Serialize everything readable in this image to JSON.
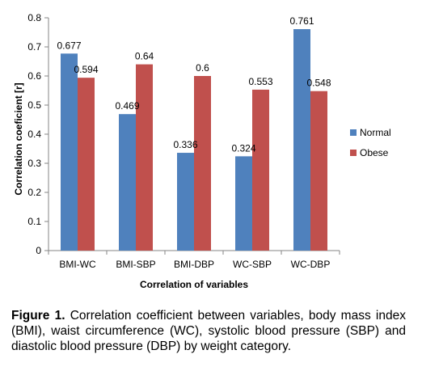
{
  "chart_data": {
    "type": "bar",
    "categories": [
      "BMI-WC",
      "BMI-SBP",
      "BMI-DBP",
      "WC-SBP",
      "WC-DBP"
    ],
    "series": [
      {
        "name": "Normal",
        "color": "#4F81BD",
        "values": [
          0.677,
          0.469,
          0.336,
          0.324,
          0.761
        ],
        "labels": [
          "0.677",
          "0.469",
          "0.336",
          "0.324",
          "0.761"
        ]
      },
      {
        "name": "Obese",
        "color": "#C0504D",
        "values": [
          0.594,
          0.64,
          0.6,
          0.553,
          0.548
        ],
        "labels": [
          "0.594",
          "0.64",
          "0.6",
          "0.553",
          "0.548"
        ]
      }
    ],
    "xlabel": "Correlation of variables",
    "ylabel": "Correlation coeficient [r]",
    "ylim": [
      0,
      0.8
    ],
    "yticks": [
      "0",
      "0.1",
      "0.2",
      "0.3",
      "0.4",
      "0.5",
      "0.6",
      "0.7",
      "0.8"
    ],
    "grid": false,
    "legend_position": "right"
  },
  "caption": {
    "label": "Figure 1.",
    "text": " Correlation coefficient between variables, body mass index (BMI), waist circumference (WC), systolic blood pressure (SBP) and diastolic blood pressure (DBP) by weight category."
  }
}
